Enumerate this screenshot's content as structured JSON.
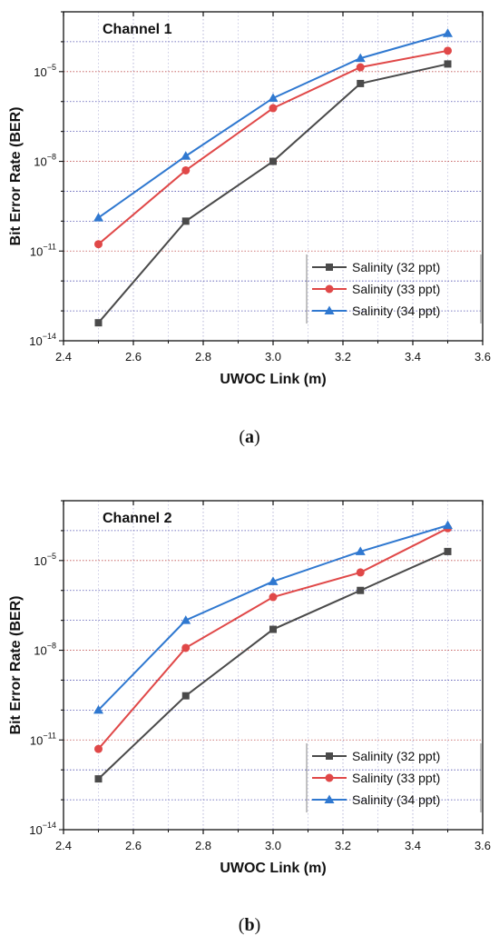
{
  "chart_data": [
    {
      "type": "line",
      "panel_label": "a",
      "title": "Channel 1",
      "xlabel": "UWOC Link (m)",
      "ylabel": "Bit Error Rate (BER)",
      "yscale": "log",
      "xlim": [
        2.4,
        3.6
      ],
      "ylim_exp": [
        -14,
        -3
      ],
      "xticks": [
        "2.4",
        "2.6",
        "2.8",
        "3.0",
        "3.2",
        "3.4",
        "3.6"
      ],
      "yticks_exp": [
        -14,
        -11,
        -8,
        -5
      ],
      "legend_position": "lower-right",
      "grid": true,
      "x": [
        2.5,
        2.75,
        3.0,
        3.25,
        3.5
      ],
      "series": [
        {
          "name": "Salinity (32 ppt)",
          "color": "#4a4a4a",
          "marker": "square",
          "values": [
            4e-14,
            1e-10,
            1e-08,
            4e-06,
            1.8e-05
          ]
        },
        {
          "name": "Salinity (33 ppt)",
          "color": "#e04848",
          "marker": "circle",
          "values": [
            1.7e-11,
            5e-09,
            6e-07,
            1.4e-05,
            5e-05
          ]
        },
        {
          "name": "Salinity (34 ppt)",
          "color": "#2f78d0",
          "marker": "triangle",
          "values": [
            1.3e-10,
            1.5e-08,
            1.3e-06,
            2.8e-05,
            0.00019
          ]
        }
      ]
    },
    {
      "type": "line",
      "panel_label": "b",
      "title": "Channel 2",
      "xlabel": "UWOC Link (m)",
      "ylabel": "Bit Error Rate (BER)",
      "yscale": "log",
      "xlim": [
        2.4,
        3.6
      ],
      "ylim_exp": [
        -14,
        -3
      ],
      "xticks": [
        "2.4",
        "2.6",
        "2.8",
        "3.0",
        "3.2",
        "3.4",
        "3.6"
      ],
      "yticks_exp": [
        -14,
        -11,
        -8,
        -5
      ],
      "legend_position": "lower-right",
      "grid": true,
      "x": [
        2.5,
        2.75,
        3.0,
        3.25,
        3.5
      ],
      "series": [
        {
          "name": "Salinity (32 ppt)",
          "color": "#4a4a4a",
          "marker": "square",
          "values": [
            5e-13,
            3e-10,
            5e-08,
            1e-06,
            2e-05
          ]
        },
        {
          "name": "Salinity (33 ppt)",
          "color": "#e04848",
          "marker": "circle",
          "values": [
            5e-12,
            1.2e-08,
            6e-07,
            4e-06,
            0.00012
          ]
        },
        {
          "name": "Salinity (34 ppt)",
          "color": "#2f78d0",
          "marker": "triangle",
          "values": [
            1e-10,
            1e-07,
            2e-06,
            2e-05,
            0.00015
          ]
        }
      ]
    }
  ],
  "captions": {
    "a": "a",
    "b": "b"
  }
}
